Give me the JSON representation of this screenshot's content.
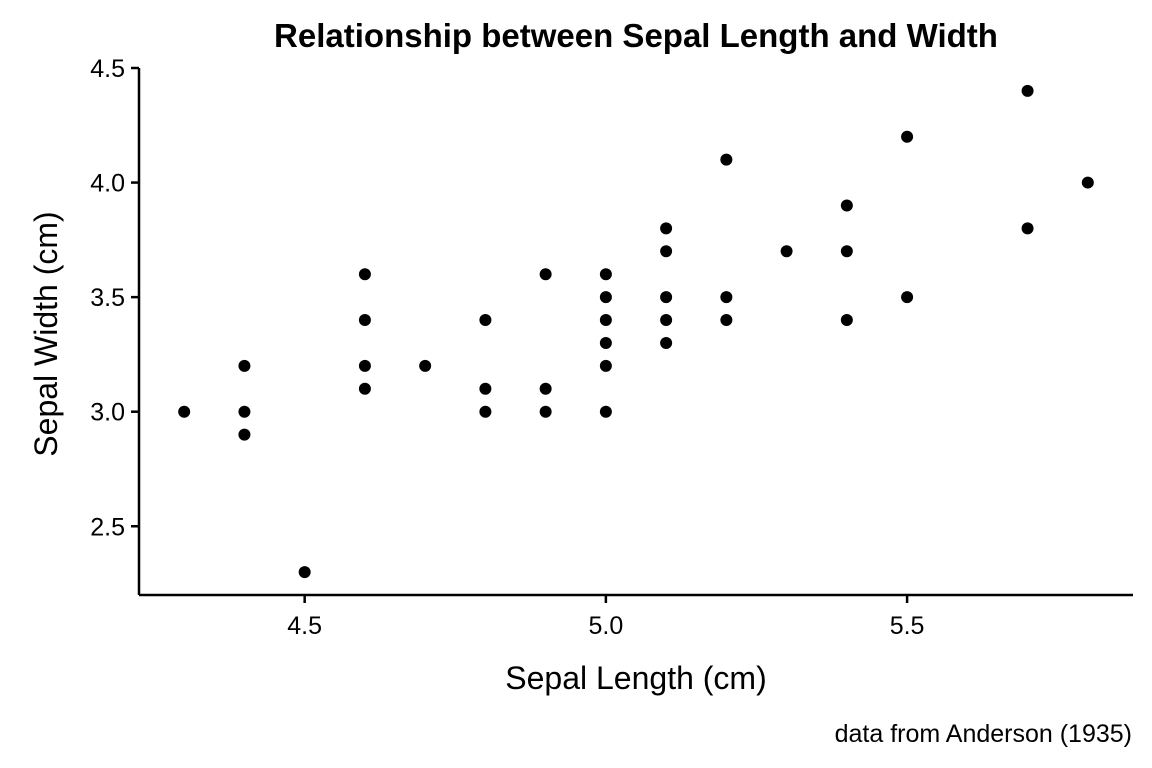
{
  "chart_data": {
    "type": "scatter",
    "title": "Relationship between Sepal Length and Width",
    "xlabel": "Sepal Length (cm)",
    "ylabel": "Sepal Width (cm)",
    "caption": "data from Anderson (1935)",
    "xlim": [
      4.225,
      5.875
    ],
    "ylim": [
      2.2,
      4.5
    ],
    "xticks": [
      4.5,
      5.0,
      5.5
    ],
    "xtick_labels": [
      "4.5",
      "5.0",
      "5.5"
    ],
    "yticks": [
      2.5,
      3.0,
      3.5,
      4.0,
      4.5
    ],
    "ytick_labels": [
      "2.5",
      "3.0",
      "3.5",
      "4.0",
      "4.5"
    ],
    "grid": false,
    "point_color": "#000000",
    "points": [
      {
        "x": 4.3,
        "y": 3.0
      },
      {
        "x": 4.4,
        "y": 3.2
      },
      {
        "x": 4.4,
        "y": 3.0
      },
      {
        "x": 4.4,
        "y": 2.9
      },
      {
        "x": 4.5,
        "y": 2.3
      },
      {
        "x": 4.6,
        "y": 3.6
      },
      {
        "x": 4.6,
        "y": 3.4
      },
      {
        "x": 4.6,
        "y": 3.2
      },
      {
        "x": 4.6,
        "y": 3.1
      },
      {
        "x": 4.7,
        "y": 3.2
      },
      {
        "x": 4.8,
        "y": 3.4
      },
      {
        "x": 4.8,
        "y": 3.1
      },
      {
        "x": 4.8,
        "y": 3.0
      },
      {
        "x": 4.9,
        "y": 3.6
      },
      {
        "x": 4.9,
        "y": 3.1
      },
      {
        "x": 4.9,
        "y": 3.0
      },
      {
        "x": 5.0,
        "y": 3.6
      },
      {
        "x": 5.0,
        "y": 3.5
      },
      {
        "x": 5.0,
        "y": 3.4
      },
      {
        "x": 5.0,
        "y": 3.3
      },
      {
        "x": 5.0,
        "y": 3.2
      },
      {
        "x": 5.0,
        "y": 3.0
      },
      {
        "x": 5.1,
        "y": 3.8
      },
      {
        "x": 5.1,
        "y": 3.7
      },
      {
        "x": 5.1,
        "y": 3.5
      },
      {
        "x": 5.1,
        "y": 3.4
      },
      {
        "x": 5.1,
        "y": 3.3
      },
      {
        "x": 5.2,
        "y": 4.1
      },
      {
        "x": 5.2,
        "y": 3.5
      },
      {
        "x": 5.2,
        "y": 3.4
      },
      {
        "x": 5.3,
        "y": 3.7
      },
      {
        "x": 5.4,
        "y": 3.9
      },
      {
        "x": 5.4,
        "y": 3.7
      },
      {
        "x": 5.4,
        "y": 3.4
      },
      {
        "x": 5.5,
        "y": 4.2
      },
      {
        "x": 5.5,
        "y": 3.5
      },
      {
        "x": 5.7,
        "y": 4.4
      },
      {
        "x": 5.7,
        "y": 3.8
      },
      {
        "x": 5.8,
        "y": 4.0
      }
    ]
  }
}
